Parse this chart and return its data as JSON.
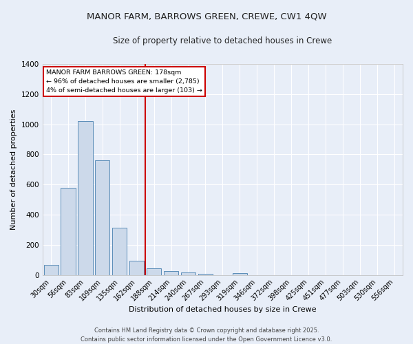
{
  "title_line1": "MANOR FARM, BARROWS GREEN, CREWE, CW1 4QW",
  "title_line2": "Size of property relative to detached houses in Crewe",
  "xlabel": "Distribution of detached houses by size in Crewe",
  "ylabel": "Number of detached properties",
  "categories": [
    "30sqm",
    "56sqm",
    "83sqm",
    "109sqm",
    "135sqm",
    "162sqm",
    "188sqm",
    "214sqm",
    "240sqm",
    "267sqm",
    "293sqm",
    "319sqm",
    "346sqm",
    "372sqm",
    "398sqm",
    "425sqm",
    "451sqm",
    "477sqm",
    "503sqm",
    "530sqm",
    "556sqm"
  ],
  "values": [
    65,
    580,
    1020,
    760,
    315,
    95,
    45,
    25,
    15,
    8,
    0,
    10,
    0,
    0,
    0,
    0,
    0,
    0,
    0,
    0,
    0
  ],
  "bar_color": "#ccd9ea",
  "bar_edge_color": "#5b8db8",
  "red_line_x": 5.5,
  "ylim": [
    0,
    1400
  ],
  "yticks": [
    0,
    200,
    400,
    600,
    800,
    1000,
    1200,
    1400
  ],
  "annotation_title": "MANOR FARM BARROWS GREEN: 178sqm",
  "annotation_line2": "← 96% of detached houses are smaller (2,785)",
  "annotation_line3": "4% of semi-detached houses are larger (103) →",
  "annotation_box_color": "#ffffff",
  "annotation_border_color": "#cc0000",
  "vline_color": "#cc0000",
  "background_color": "#e8eef8",
  "footer_line1": "Contains HM Land Registry data © Crown copyright and database right 2025.",
  "footer_line2": "Contains public sector information licensed under the Open Government Licence v3.0.",
  "grid_color": "#ffffff",
  "title_fontsize": 9.5,
  "subtitle_fontsize": 8.5,
  "axis_label_fontsize": 8,
  "tick_fontsize": 7,
  "footer_fontsize": 6
}
